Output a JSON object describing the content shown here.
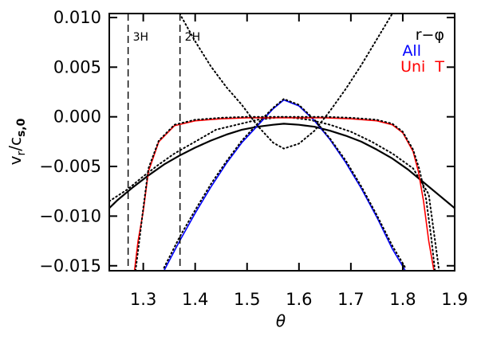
{
  "chart_data": {
    "type": "line",
    "title": "",
    "xlabel": "θ",
    "ylabel": {
      "main": "v",
      "sub1": "r",
      "slash": "/c",
      "sub2": "s,0"
    },
    "xlim": [
      1.2345,
      1.9
    ],
    "ylim": [
      -0.0155,
      0.0104
    ],
    "xticks": [
      {
        "value": 1.3,
        "label": "1.3"
      },
      {
        "value": 1.4,
        "label": "1.4"
      },
      {
        "value": 1.5,
        "label": "1.5"
      },
      {
        "value": 1.6,
        "label": "1.6"
      },
      {
        "value": 1.7,
        "label": "1.7"
      },
      {
        "value": 1.8,
        "label": "1.8"
      },
      {
        "value": 1.9,
        "label": "1.9"
      }
    ],
    "yticks": [
      {
        "value": 0.01,
        "label": "0.010"
      },
      {
        "value": 0.005,
        "label": "0.005"
      },
      {
        "value": 0.0,
        "label": "0.000"
      },
      {
        "value": -0.005,
        "label": "−0.005"
      },
      {
        "value": -0.01,
        "label": "−0.010"
      },
      {
        "value": -0.015,
        "label": "−0.015"
      }
    ],
    "vlines": [
      {
        "x": 1.2708,
        "label": "3H"
      },
      {
        "x": 1.3708,
        "label": "2H"
      }
    ],
    "legend": {
      "placement": "top-right",
      "entries": [
        {
          "label": "r−φ",
          "color": "#000000"
        },
        {
          "label": "All",
          "color": "#0000ff"
        },
        {
          "label": "Uni  T",
          "color": "#ff0000"
        }
      ]
    },
    "grid": false,
    "series": [
      {
        "name": "r−φ",
        "style": "solid",
        "color": "#000000",
        "x": [
          1.2345,
          1.25,
          1.28,
          1.31,
          1.34,
          1.37,
          1.4,
          1.43,
          1.46,
          1.49,
          1.52,
          1.55,
          1.5708,
          1.6,
          1.63,
          1.66,
          1.69,
          1.72,
          1.75,
          1.78,
          1.81,
          1.84,
          1.87,
          1.9
        ],
        "y": [
          -0.0092,
          -0.0084,
          -0.0071,
          -0.0059,
          -0.0048,
          -0.0039,
          -0.0031,
          -0.0024,
          -0.0018,
          -0.0013,
          -0.001,
          -0.0008,
          -0.0007,
          -0.0008,
          -0.001,
          -0.0014,
          -0.0019,
          -0.0025,
          -0.0033,
          -0.0042,
          -0.0053,
          -0.0066,
          -0.0079,
          -0.0092
        ]
      },
      {
        "name": "r−φ",
        "style": "dotted",
        "color": "#000000",
        "x": [
          1.2345,
          1.27,
          1.3,
          1.33,
          1.36,
          1.4,
          1.44,
          1.48,
          1.52,
          1.5708,
          1.62,
          1.66,
          1.7,
          1.74,
          1.78,
          1.82,
          1.85,
          1.87
        ],
        "y": [
          -0.0085,
          -0.0073,
          -0.006,
          -0.0048,
          -0.0037,
          -0.0025,
          -0.0013,
          -0.0008,
          -0.0003,
          0.0,
          -0.0003,
          -0.0008,
          -0.0015,
          -0.0025,
          -0.0037,
          -0.0052,
          -0.0078,
          -0.0155
        ]
      },
      {
        "name": "All",
        "style": "solid",
        "color": "#0000ff",
        "x": [
          1.34,
          1.37,
          1.4,
          1.43,
          1.46,
          1.49,
          1.52,
          1.55,
          1.5708,
          1.6,
          1.63,
          1.66,
          1.69,
          1.72,
          1.75,
          1.78,
          1.805
        ],
        "y": [
          -0.0155,
          -0.0125,
          -0.0097,
          -0.0071,
          -0.0047,
          -0.0026,
          -0.0009,
          0.0008,
          0.0017,
          0.0011,
          -0.0004,
          -0.0023,
          -0.0046,
          -0.0072,
          -0.0101,
          -0.0133,
          -0.0155
        ]
      },
      {
        "name": "All",
        "style": "dotted",
        "color": "#000000",
        "x": [
          1.34,
          1.37,
          1.4,
          1.43,
          1.46,
          1.49,
          1.52,
          1.55,
          1.5708,
          1.6,
          1.63,
          1.66,
          1.69,
          1.72,
          1.75,
          1.78,
          1.805
        ],
        "y": [
          -0.0152,
          -0.0121,
          -0.0094,
          -0.0068,
          -0.0045,
          -0.0024,
          -0.0007,
          0.0009,
          0.0018,
          0.0012,
          -0.0003,
          -0.0022,
          -0.0044,
          -0.007,
          -0.0099,
          -0.013,
          -0.0152
        ]
      },
      {
        "name": "Uni T",
        "style": "solid",
        "color": "#ff0000",
        "x": [
          1.283,
          1.29,
          1.3,
          1.31,
          1.33,
          1.36,
          1.4,
          1.45,
          1.5,
          1.5708,
          1.65,
          1.7,
          1.75,
          1.78,
          1.8,
          1.82,
          1.83,
          1.84,
          1.85,
          1.86
        ],
        "y": [
          -0.0155,
          -0.0125,
          -0.0095,
          -0.0055,
          -0.0025,
          -0.0009,
          -0.0004,
          -0.0002,
          -0.0001,
          -0.0001,
          -0.0001,
          -0.0002,
          -0.0004,
          -0.0008,
          -0.0016,
          -0.0035,
          -0.0055,
          -0.0085,
          -0.0125,
          -0.0155
        ]
      },
      {
        "name": "Uni T",
        "style": "dotted",
        "color": "#000000",
        "x": [
          1.285,
          1.293,
          1.3,
          1.31,
          1.33,
          1.36,
          1.4,
          1.45,
          1.5,
          1.5708,
          1.65,
          1.7,
          1.75,
          1.78,
          1.8,
          1.82,
          1.832,
          1.845,
          1.855,
          1.862
        ],
        "y": [
          -0.0155,
          -0.0122,
          -0.0092,
          -0.0052,
          -0.0024,
          -0.0008,
          -0.0003,
          -0.0001,
          0.0,
          0.0,
          0.0,
          -0.0001,
          -0.0003,
          -0.0007,
          -0.0015,
          -0.0033,
          -0.0053,
          -0.0083,
          -0.0122,
          -0.0155
        ]
      },
      {
        "name": "",
        "style": "dotted",
        "color": "#000000",
        "x": [
          1.37,
          1.4,
          1.43,
          1.46,
          1.49,
          1.52,
          1.55,
          1.5708,
          1.6,
          1.63,
          1.66,
          1.69,
          1.72,
          1.75,
          1.78,
          1.81,
          1.84,
          1.87,
          1.9
        ],
        "y": [
          0.0104,
          0.0076,
          0.0051,
          0.003,
          0.0012,
          -0.0009,
          -0.0026,
          -0.0032,
          -0.0027,
          -0.0014,
          0.0006,
          0.0028,
          0.0052,
          0.0078,
          0.0104,
          0.0104,
          0.0104,
          0.0104,
          0.0104
        ]
      }
    ]
  }
}
